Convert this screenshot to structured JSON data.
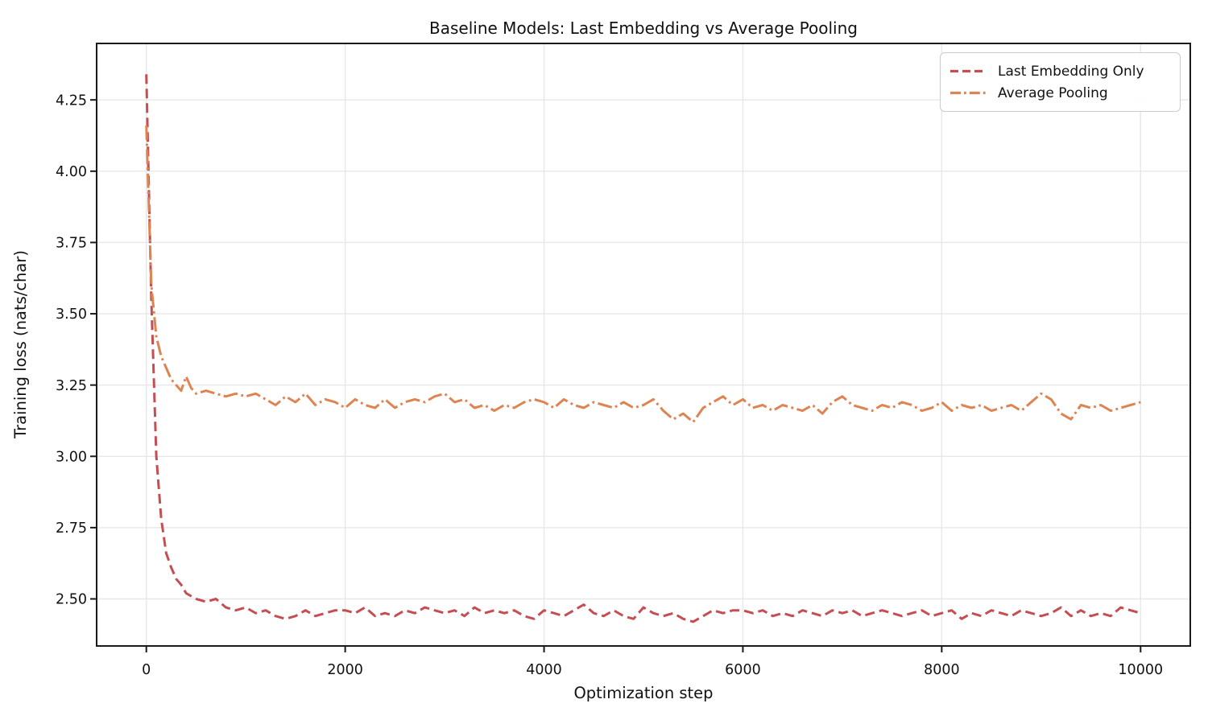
{
  "figure": {
    "background": "#ffffff",
    "grid_color": "#e7e7e7",
    "spine_color": "#1a1a1a",
    "text_color": "#111111"
  },
  "chart_data": {
    "type": "line",
    "title": "Baseline Models: Last Embedding vs Average Pooling",
    "xlabel": "Optimization step",
    "ylabel": "Training loss (nats/char)",
    "xlim": [
      -500,
      10500
    ],
    "ylim": [
      2.335,
      4.448
    ],
    "grid": true,
    "legend_position": "upper right",
    "x_tick_values": [
      0,
      2000,
      4000,
      6000,
      8000,
      10000
    ],
    "x_tick_labels": [
      "0",
      "2000",
      "4000",
      "6000",
      "8000",
      "10000"
    ],
    "y_tick_values": [
      2.5,
      2.75,
      3.0,
      3.25,
      3.5,
      3.75,
      4.0,
      4.25
    ],
    "y_tick_labels": [
      "2.50",
      "2.75",
      "3.00",
      "3.25",
      "3.50",
      "3.75",
      "4.00",
      "4.25"
    ],
    "x": [
      0,
      50,
      100,
      150,
      200,
      250,
      300,
      350,
      400,
      450,
      500,
      600,
      700,
      800,
      900,
      1000,
      1100,
      1200,
      1300,
      1400,
      1500,
      1600,
      1700,
      1800,
      1900,
      2000,
      2100,
      2200,
      2300,
      2400,
      2500,
      2600,
      2700,
      2800,
      2900,
      3000,
      3100,
      3200,
      3300,
      3400,
      3500,
      3600,
      3700,
      3800,
      3900,
      4000,
      4100,
      4200,
      4300,
      4400,
      4500,
      4600,
      4700,
      4800,
      4900,
      5000,
      5100,
      5200,
      5300,
      5400,
      5500,
      5600,
      5700,
      5800,
      5900,
      6000,
      6100,
      6200,
      6300,
      6400,
      6500,
      6600,
      6700,
      6800,
      6900,
      7000,
      7100,
      7200,
      7300,
      7400,
      7500,
      7600,
      7700,
      7800,
      7900,
      8000,
      8100,
      8200,
      8300,
      8400,
      8500,
      8600,
      8700,
      8800,
      8900,
      9000,
      9100,
      9200,
      9300,
      9400,
      9500,
      9600,
      9700,
      9800,
      9900,
      10000
    ],
    "series": [
      {
        "name": "Last Embedding Only",
        "color": "#C44E52",
        "linestyle": "dashed",
        "values": [
          4.34,
          3.55,
          3.0,
          2.78,
          2.66,
          2.61,
          2.57,
          2.55,
          2.52,
          2.51,
          2.5,
          2.49,
          2.5,
          2.47,
          2.46,
          2.47,
          2.45,
          2.46,
          2.44,
          2.43,
          2.44,
          2.46,
          2.44,
          2.45,
          2.46,
          2.46,
          2.45,
          2.47,
          2.44,
          2.45,
          2.44,
          2.46,
          2.45,
          2.47,
          2.46,
          2.45,
          2.46,
          2.44,
          2.47,
          2.45,
          2.46,
          2.45,
          2.46,
          2.44,
          2.43,
          2.46,
          2.45,
          2.44,
          2.46,
          2.48,
          2.45,
          2.44,
          2.46,
          2.44,
          2.43,
          2.47,
          2.45,
          2.44,
          2.45,
          2.43,
          2.42,
          2.44,
          2.46,
          2.45,
          2.46,
          2.46,
          2.45,
          2.46,
          2.44,
          2.45,
          2.44,
          2.46,
          2.45,
          2.44,
          2.46,
          2.45,
          2.46,
          2.44,
          2.45,
          2.46,
          2.45,
          2.44,
          2.45,
          2.46,
          2.44,
          2.45,
          2.46,
          2.43,
          2.45,
          2.44,
          2.46,
          2.45,
          2.44,
          2.46,
          2.45,
          2.44,
          2.45,
          2.47,
          2.44,
          2.46,
          2.44,
          2.45,
          2.44,
          2.47,
          2.46,
          2.45
        ]
      },
      {
        "name": "Average Pooling",
        "color": "#DD8452",
        "linestyle": "dashdot",
        "values": [
          4.16,
          3.6,
          3.42,
          3.35,
          3.31,
          3.27,
          3.25,
          3.23,
          3.28,
          3.24,
          3.22,
          3.23,
          3.22,
          3.21,
          3.22,
          3.21,
          3.22,
          3.2,
          3.18,
          3.21,
          3.19,
          3.22,
          3.18,
          3.2,
          3.19,
          3.17,
          3.2,
          3.18,
          3.17,
          3.2,
          3.17,
          3.19,
          3.2,
          3.19,
          3.21,
          3.22,
          3.19,
          3.2,
          3.17,
          3.18,
          3.16,
          3.18,
          3.17,
          3.19,
          3.2,
          3.19,
          3.17,
          3.2,
          3.18,
          3.17,
          3.19,
          3.18,
          3.17,
          3.19,
          3.17,
          3.18,
          3.2,
          3.16,
          3.13,
          3.15,
          3.12,
          3.17,
          3.19,
          3.21,
          3.18,
          3.2,
          3.17,
          3.18,
          3.16,
          3.18,
          3.17,
          3.16,
          3.18,
          3.15,
          3.19,
          3.21,
          3.18,
          3.17,
          3.16,
          3.18,
          3.17,
          3.19,
          3.18,
          3.16,
          3.17,
          3.19,
          3.16,
          3.18,
          3.17,
          3.18,
          3.16,
          3.17,
          3.18,
          3.16,
          3.19,
          3.22,
          3.2,
          3.15,
          3.13,
          3.18,
          3.17,
          3.18,
          3.16,
          3.17,
          3.18,
          3.19
        ]
      }
    ]
  }
}
